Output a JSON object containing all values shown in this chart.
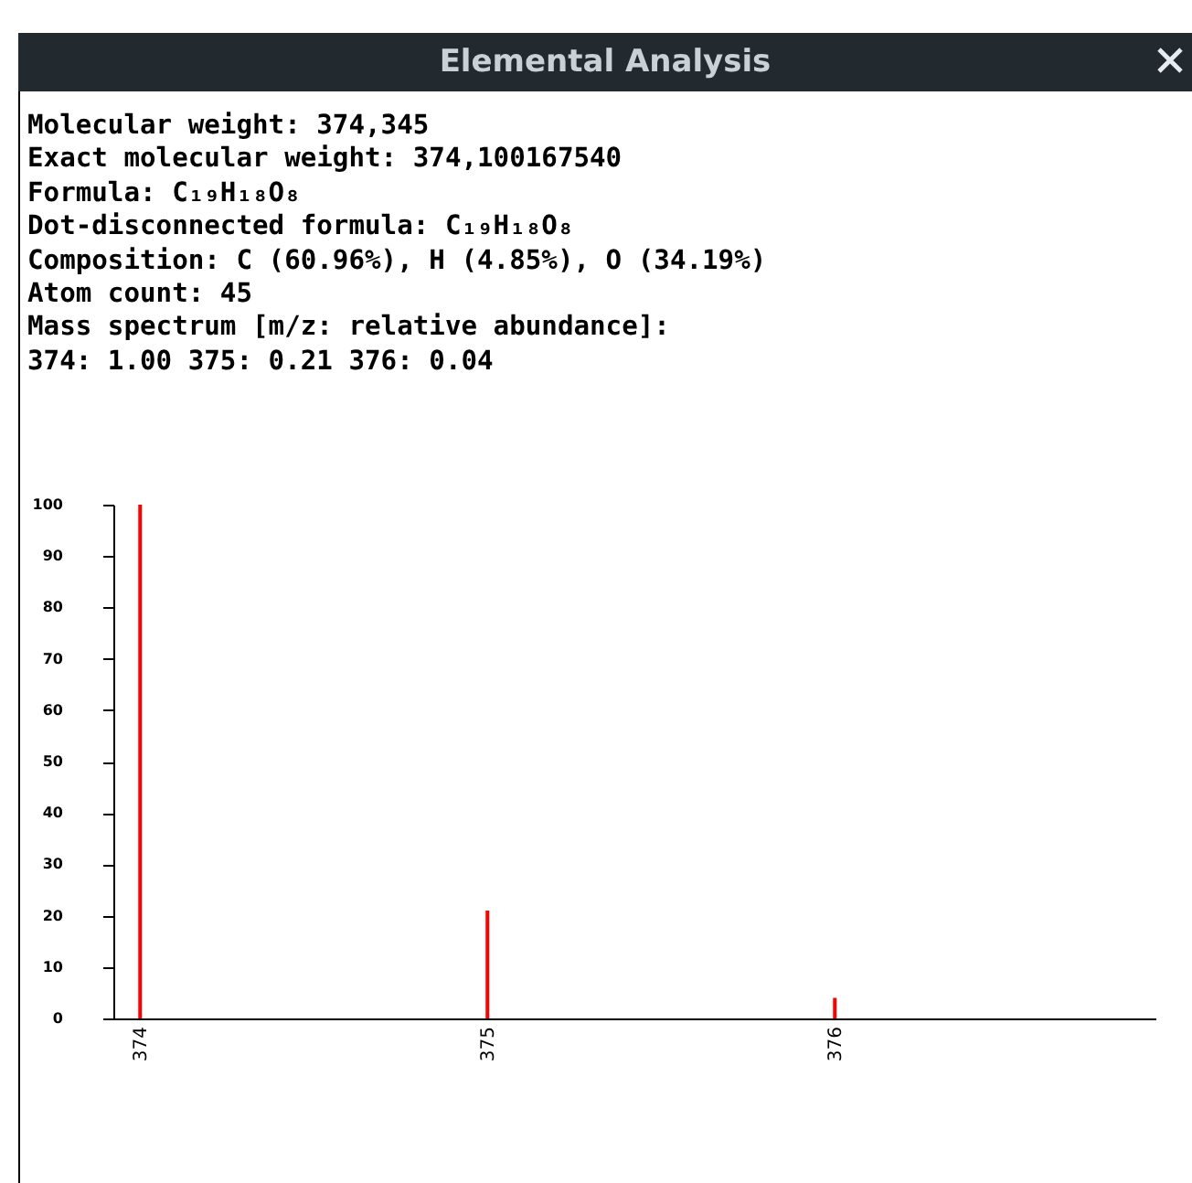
{
  "chart_data": {
    "type": "bar",
    "title": "Elemental Analysis",
    "annotations": [
      "Molecular weight: 374,345",
      "Exact molecular weight: 374,100167540",
      "Formula: C₁₉H₁₈O₈",
      "Dot-disconnected formula: C₁₉H₁₈O₈",
      "Composition: C (60.96%), H (4.85%), O (34.19%)",
      "Atom count: 45",
      "Mass spectrum [m/z: relative abundance]:",
      "374: 1.00 375: 0.21 376: 0.04"
    ],
    "categories": [
      "374",
      "375",
      "376"
    ],
    "values": [
      100,
      21,
      4
    ],
    "color": "#ff0000",
    "ylim": [
      0,
      100
    ],
    "yticks": [
      0,
      10,
      20,
      30,
      40,
      50,
      60,
      70,
      80,
      90,
      100
    ],
    "grid": false
  }
}
